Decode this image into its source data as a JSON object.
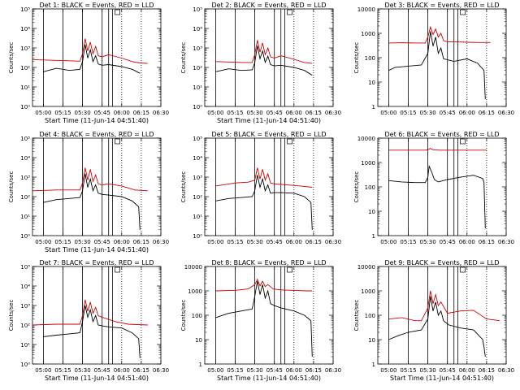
{
  "chart_data": [
    {
      "type": "line",
      "title": "Det  1: BLACK = Events, RED = LLD",
      "ylabel": "Counts/sec",
      "xlabel": "Start Time (11-Jun-14 04:51:40)",
      "yscale": "log",
      "ylim": [
        1,
        100000
      ],
      "ytick_labels": [
        "10⁰",
        "10¹",
        "10²",
        "10³",
        "10⁴",
        "10⁵"
      ],
      "xlim": [
        "04:51:40",
        "06:30:00"
      ],
      "xtick_labels": [
        "05:00",
        "05:15",
        "05:30",
        "05:45",
        "06:00",
        "06:15",
        "06:30"
      ],
      "grid": false,
      "series": [
        {
          "color": "#cc0000",
          "x": [
            "04:52",
            "05:10",
            "05:20",
            "05:28",
            "05:30",
            "05:32",
            "05:34",
            "05:36",
            "05:38",
            "05:40",
            "05:42",
            "05:45",
            "05:50",
            "06:00",
            "06:08",
            "06:14",
            "06:20"
          ],
          "y": [
            250,
            230,
            220,
            210,
            500,
            3000,
            700,
            2000,
            500,
            1200,
            400,
            350,
            450,
            300,
            200,
            170,
            160
          ]
        },
        {
          "color": "#000000",
          "x": [
            "05:00",
            "05:10",
            "05:20",
            "05:28",
            "05:30",
            "05:32",
            "05:34",
            "05:36",
            "05:38",
            "05:40",
            "05:42",
            "05:45",
            "05:50",
            "06:00",
            "06:08",
            "06:14"
          ],
          "y": [
            60,
            90,
            70,
            80,
            200,
            1500,
            300,
            800,
            200,
            400,
            150,
            130,
            140,
            110,
            80,
            50
          ]
        }
      ],
      "vlines_solid": [
        "05:00",
        "05:15",
        "05:30",
        "05:45",
        "05:50",
        "05:53"
      ],
      "vlines_dotted": [
        "06:00",
        "06:15"
      ]
    },
    {
      "type": "line",
      "title": "Det  2: BLACK = Events, RED = LLD",
      "ylabel": "Counts/sec",
      "xlabel": "Start Time (11-Jun-14 04:51:40)",
      "yscale": "log",
      "ylim": [
        1,
        100000
      ],
      "ytick_labels": [
        "10⁰",
        "10¹",
        "10²",
        "10³",
        "10⁴",
        "10⁵"
      ],
      "xlim": [
        "04:51:40",
        "06:30:00"
      ],
      "xtick_labels": [
        "05:00",
        "05:15",
        "05:30",
        "05:45",
        "06:00",
        "06:15",
        "06:30"
      ],
      "grid": false,
      "series": [
        {
          "color": "#cc0000",
          "x": [
            "05:00",
            "05:10",
            "05:20",
            "05:28",
            "05:30",
            "05:32",
            "05:34",
            "05:36",
            "05:38",
            "05:40",
            "05:42",
            "05:45",
            "05:50",
            "06:00",
            "06:08",
            "06:14"
          ],
          "y": [
            200,
            190,
            180,
            180,
            450,
            2500,
            600,
            1800,
            450,
            1000,
            350,
            300,
            400,
            260,
            180,
            160
          ]
        },
        {
          "color": "#000000",
          "x": [
            "05:00",
            "05:10",
            "05:20",
            "05:28",
            "05:30",
            "05:32",
            "05:34",
            "05:36",
            "05:38",
            "05:40",
            "05:42",
            "05:45",
            "05:50",
            "06:00",
            "06:08",
            "06:14"
          ],
          "y": [
            60,
            85,
            70,
            75,
            180,
            1300,
            280,
            700,
            180,
            380,
            140,
            120,
            130,
            100,
            70,
            40
          ]
        }
      ],
      "vlines_solid": [
        "05:00",
        "05:15",
        "05:30",
        "05:45",
        "05:50",
        "05:53"
      ],
      "vlines_dotted": [
        "06:00",
        "06:15"
      ]
    },
    {
      "type": "line",
      "title": "Det  3: BLACK = Events, RED = LLD",
      "ylabel": "Counts/sec",
      "xlabel": "",
      "yscale": "log",
      "ylim": [
        1,
        10000
      ],
      "ytick_labels": [
        "1",
        "10",
        "100",
        "1000",
        "10000"
      ],
      "xlim": [
        "04:51:40",
        "06:30:00"
      ],
      "xtick_labels": [
        "05:00",
        "05:15",
        "05:30",
        "05:45",
        "06:00",
        "06:15",
        "06:30"
      ],
      "grid": false,
      "series": [
        {
          "color": "#cc0000",
          "x": [
            "05:00",
            "05:10",
            "05:20",
            "05:28",
            "05:30",
            "05:32",
            "05:34",
            "05:36",
            "05:38",
            "05:40",
            "05:42",
            "05:45",
            "05:50",
            "06:00",
            "06:10",
            "06:18"
          ],
          "y": [
            400,
            410,
            400,
            400,
            700,
            1800,
            900,
            1500,
            700,
            1000,
            500,
            450,
            450,
            430,
            420,
            420
          ]
        },
        {
          "color": "#000000",
          "x": [
            "05:00",
            "05:05",
            "05:15",
            "05:25",
            "05:30",
            "05:32",
            "05:34",
            "05:36",
            "05:38",
            "05:40",
            "05:42",
            "05:46",
            "05:50",
            "06:00",
            "06:08",
            "06:13",
            "06:14"
          ],
          "y": [
            30,
            40,
            45,
            50,
            150,
            1200,
            300,
            700,
            150,
            250,
            90,
            80,
            70,
            90,
            60,
            30,
            2
          ]
        }
      ],
      "vlines_solid": [
        "05:00",
        "05:15",
        "05:30",
        "05:45",
        "05:50",
        "05:53"
      ],
      "vlines_dotted": [
        "06:00",
        "06:15"
      ]
    },
    {
      "type": "line",
      "title": "Det  4: BLACK = Events, RED = LLD",
      "ylabel": "Counts/sec",
      "xlabel": "Start Time (11-Jun-14 04:51:40)",
      "yscale": "log",
      "ylim": [
        1,
        100000
      ],
      "ytick_labels": [
        "10⁰",
        "10¹",
        "10²",
        "10³",
        "10⁴",
        "10⁵"
      ],
      "xlim": [
        "04:51:40",
        "06:30:00"
      ],
      "xtick_labels": [
        "05:00",
        "05:15",
        "05:30",
        "05:45",
        "06:00",
        "06:15",
        "06:30"
      ],
      "grid": false,
      "series": [
        {
          "color": "#cc0000",
          "x": [
            "04:52",
            "05:10",
            "05:20",
            "05:28",
            "05:30",
            "05:32",
            "05:34",
            "05:36",
            "05:38",
            "05:40",
            "05:42",
            "05:45",
            "05:50",
            "06:00",
            "06:10",
            "06:20"
          ],
          "y": [
            200,
            220,
            220,
            220,
            500,
            3000,
            700,
            2500,
            600,
            1300,
            450,
            400,
            450,
            350,
            220,
            200
          ]
        },
        {
          "color": "#000000",
          "x": [
            "05:00",
            "05:10",
            "05:20",
            "05:28",
            "05:30",
            "05:32",
            "05:34",
            "05:36",
            "05:38",
            "05:40",
            "05:42",
            "05:45",
            "05:50",
            "06:00",
            "06:08",
            "06:13",
            "06:14"
          ],
          "y": [
            50,
            70,
            80,
            90,
            200,
            1500,
            300,
            800,
            200,
            400,
            150,
            130,
            120,
            100,
            60,
            30,
            2
          ]
        }
      ],
      "vlines_solid": [
        "05:00",
        "05:15",
        "05:30",
        "05:45",
        "05:50",
        "05:53"
      ],
      "vlines_dotted": [
        "06:00",
        "06:15"
      ]
    },
    {
      "type": "line",
      "title": "Det  5: BLACK = Events, RED = LLD",
      "ylabel": "Counts/sec",
      "xlabel": "",
      "yscale": "log",
      "ylim": [
        1,
        100000
      ],
      "ytick_labels": [
        "10⁰",
        "10¹",
        "10²",
        "10³",
        "10⁴",
        "10⁵"
      ],
      "xlim": [
        "04:51:40",
        "06:30:00"
      ],
      "xtick_labels": [
        "05:00",
        "05:15",
        "05:30",
        "05:45",
        "06:00",
        "06:15",
        "06:30"
      ],
      "grid": false,
      "series": [
        {
          "color": "#cc0000",
          "x": [
            "05:00",
            "05:15",
            "05:25",
            "05:30",
            "05:32",
            "05:34",
            "05:36",
            "05:38",
            "05:40",
            "05:42",
            "05:45",
            "05:55",
            "06:05",
            "06:14"
          ],
          "y": [
            350,
            500,
            550,
            700,
            3000,
            800,
            2500,
            700,
            1500,
            500,
            450,
            400,
            350,
            300
          ]
        },
        {
          "color": "#000000",
          "x": [
            "05:00",
            "05:10",
            "05:20",
            "05:28",
            "05:30",
            "05:32",
            "05:34",
            "05:36",
            "05:38",
            "05:40",
            "05:42",
            "05:45",
            "05:50",
            "06:00",
            "06:08",
            "06:13",
            "06:14"
          ],
          "y": [
            60,
            80,
            90,
            100,
            200,
            1300,
            300,
            800,
            200,
            400,
            150,
            160,
            160,
            150,
            100,
            50,
            2
          ]
        }
      ],
      "vlines_solid": [
        "05:00",
        "05:15",
        "05:30",
        "05:45",
        "05:50",
        "05:53"
      ],
      "vlines_dotted": [
        "06:00",
        "06:15"
      ]
    },
    {
      "type": "line",
      "title": "Det  6: BLACK = Events, RED = LLD",
      "ylabel": "Counts/sec",
      "xlabel": "",
      "yscale": "log",
      "ylim": [
        1,
        10000
      ],
      "ytick_labels": [
        "1",
        "10",
        "100",
        "1000",
        "10000"
      ],
      "xlim": [
        "04:51:40",
        "06:30:00"
      ],
      "xtick_labels": [
        "05:00",
        "05:15",
        "05:30",
        "05:45",
        "06:00",
        "06:15",
        "06:30"
      ],
      "grid": false,
      "series": [
        {
          "color": "#cc0000",
          "x": [
            "05:00",
            "05:20",
            "05:28",
            "05:30",
            "05:32",
            "05:34",
            "05:40",
            "06:00",
            "06:15"
          ],
          "y": [
            3200,
            3200,
            3200,
            3300,
            3800,
            3300,
            3200,
            3200,
            3200
          ]
        },
        {
          "color": "#000000",
          "x": [
            "05:00",
            "05:10",
            "05:20",
            "05:28",
            "05:30",
            "05:31",
            "05:33",
            "05:35",
            "05:38",
            "05:45",
            "05:55",
            "06:05",
            "06:12",
            "06:13",
            "06:14"
          ],
          "y": [
            180,
            160,
            150,
            150,
            250,
            700,
            400,
            200,
            160,
            200,
            250,
            300,
            220,
            150,
            2
          ]
        }
      ],
      "vlines_solid": [
        "05:00",
        "05:15",
        "05:30",
        "05:45",
        "05:50",
        "05:53"
      ],
      "vlines_dotted": [
        "06:00",
        "06:15"
      ]
    },
    {
      "type": "line",
      "title": "Det  7: BLACK = Events, RED = LLD",
      "ylabel": "Counts/sec",
      "xlabel": "Start Time (11-Jun-14 04:51:40)",
      "yscale": "log",
      "ylim": [
        1,
        100000
      ],
      "ytick_labels": [
        "10⁰",
        "10¹",
        "10²",
        "10³",
        "10⁴",
        "10⁵"
      ],
      "xlim": [
        "04:51:40",
        "06:30:00"
      ],
      "xtick_labels": [
        "05:00",
        "05:15",
        "05:30",
        "05:45",
        "06:00",
        "06:15",
        "06:30"
      ],
      "grid": false,
      "series": [
        {
          "color": "#cc0000",
          "x": [
            "04:52",
            "05:10",
            "05:20",
            "05:28",
            "05:30",
            "05:32",
            "05:34",
            "05:36",
            "05:38",
            "05:40",
            "05:42",
            "05:45",
            "05:55",
            "06:05",
            "06:20"
          ],
          "y": [
            100,
            110,
            110,
            110,
            300,
            2000,
            500,
            1500,
            400,
            800,
            300,
            250,
            150,
            110,
            100
          ]
        },
        {
          "color": "#000000",
          "x": [
            "05:00",
            "05:10",
            "05:20",
            "05:28",
            "05:30",
            "05:32",
            "05:34",
            "05:36",
            "05:38",
            "05:40",
            "05:42",
            "05:45",
            "05:50",
            "06:00",
            "06:08",
            "06:13",
            "06:14"
          ],
          "y": [
            25,
            30,
            35,
            40,
            150,
            1000,
            250,
            600,
            150,
            300,
            100,
            90,
            80,
            70,
            40,
            20,
            2
          ]
        }
      ],
      "vlines_solid": [
        "05:00",
        "05:15",
        "05:30",
        "05:45",
        "05:50",
        "05:53"
      ],
      "vlines_dotted": [
        "06:00",
        "06:15"
      ]
    },
    {
      "type": "line",
      "title": "Det  8: BLACK = Events, RED = LLD",
      "ylabel": "Counts/sec",
      "xlabel": "Start Time (11-Jun-14 04:51:40)",
      "yscale": "log",
      "ylim": [
        1,
        10000
      ],
      "ytick_labels": [
        "1",
        "10",
        "100",
        "1000",
        "10000"
      ],
      "xlim": [
        "04:51:40",
        "06:30:00"
      ],
      "xtick_labels": [
        "05:00",
        "05:15",
        "05:30",
        "05:45",
        "06:00",
        "06:15",
        "06:30"
      ],
      "grid": false,
      "series": [
        {
          "color": "#cc0000",
          "x": [
            "05:00",
            "05:15",
            "05:25",
            "05:30",
            "05:32",
            "05:34",
            "05:36",
            "05:38",
            "05:40",
            "05:44",
            "05:50",
            "06:00",
            "06:10",
            "06:14"
          ],
          "y": [
            1000,
            1050,
            1200,
            1800,
            3000,
            1600,
            2500,
            1500,
            1800,
            1200,
            1100,
            1050,
            1000,
            1000
          ]
        },
        {
          "color": "#000000",
          "x": [
            "05:00",
            "05:10",
            "05:20",
            "05:28",
            "05:30",
            "05:32",
            "05:34",
            "05:36",
            "05:38",
            "05:40",
            "05:42",
            "05:45",
            "05:50",
            "06:00",
            "06:08",
            "06:13",
            "06:14"
          ],
          "y": [
            80,
            120,
            150,
            180,
            600,
            2500,
            700,
            1800,
            500,
            1000,
            300,
            250,
            200,
            150,
            100,
            60,
            2
          ]
        }
      ],
      "vlines_solid": [
        "05:00",
        "05:15",
        "05:30",
        "05:45",
        "05:50",
        "05:53"
      ],
      "vlines_dotted": [
        "06:00",
        "06:15"
      ]
    },
    {
      "type": "line",
      "title": "Det  9: BLACK = Events, RED = LLD",
      "ylabel": "Counts/sec",
      "xlabel": "Start Time (11-Jun-14 04:51:40)",
      "yscale": "log",
      "ylim": [
        1,
        10000
      ],
      "ytick_labels": [
        "1",
        "10",
        "100",
        "1000",
        "10000"
      ],
      "xlim": [
        "04:51:40",
        "06:30:00"
      ],
      "xtick_labels": [
        "05:00",
        "05:15",
        "05:30",
        "05:45",
        "06:00",
        "06:15",
        "06:30"
      ],
      "grid": false,
      "series": [
        {
          "color": "#cc0000",
          "x": [
            "05:00",
            "05:10",
            "05:20",
            "05:25",
            "05:30",
            "05:32",
            "05:34",
            "05:36",
            "05:38",
            "05:40",
            "05:45",
            "05:55",
            "06:05",
            "06:15",
            "06:25"
          ],
          "y": [
            70,
            80,
            60,
            60,
            200,
            1000,
            300,
            700,
            250,
            350,
            120,
            150,
            160,
            70,
            60
          ]
        },
        {
          "color": "#000000",
          "x": [
            "05:00",
            "05:08",
            "05:15",
            "05:25",
            "05:30",
            "05:32",
            "05:34",
            "05:36",
            "05:38",
            "05:40",
            "05:42",
            "05:46",
            "05:55",
            "06:05",
            "06:12",
            "06:13",
            "06:14"
          ],
          "y": [
            10,
            15,
            20,
            25,
            70,
            600,
            150,
            350,
            100,
            150,
            60,
            40,
            30,
            25,
            10,
            5,
            2
          ]
        }
      ],
      "vlines_solid": [
        "05:00",
        "05:15",
        "05:30",
        "05:45",
        "05:50",
        "05:53"
      ],
      "vlines_dotted": [
        "06:00",
        "06:15"
      ]
    }
  ]
}
